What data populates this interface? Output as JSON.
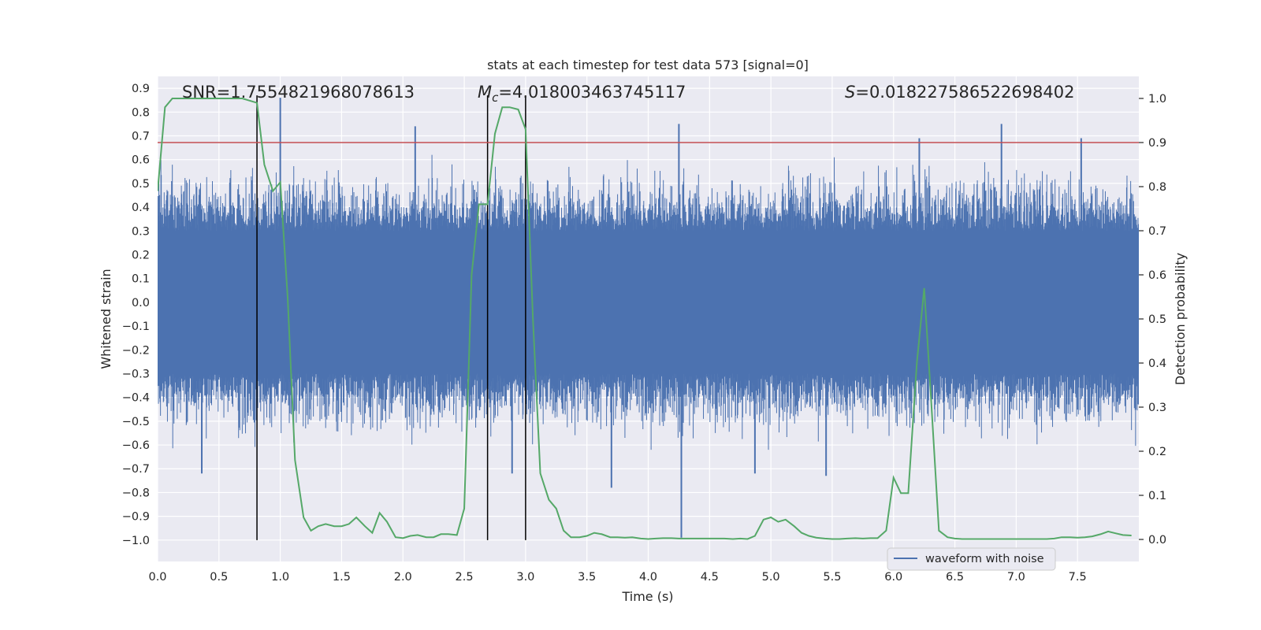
{
  "chart_data": {
    "type": "line",
    "title": "stats at each timestep for test data 573 [signal=0]",
    "xlabel": "Time (s)",
    "ylabel_left": "Whitened strain",
    "ylabel_right": "Detection probability",
    "xlim": [
      0,
      8
    ],
    "ylim_left": [
      -1.09,
      0.95
    ],
    "ylim_right": [
      -0.05,
      1.05
    ],
    "x_ticks": [
      0.0,
      0.5,
      1.0,
      1.5,
      2.0,
      2.5,
      3.0,
      3.5,
      4.0,
      4.5,
      5.0,
      5.5,
      6.0,
      6.5,
      7.0,
      7.5
    ],
    "x_tick_labels": [
      "0.0",
      "0.5",
      "1.0",
      "1.5",
      "2.0",
      "2.5",
      "3.0",
      "3.5",
      "4.0",
      "4.5",
      "5.0",
      "5.5",
      "6.0",
      "6.5",
      "7.0",
      "7.5"
    ],
    "y_left_ticks": [
      0.9,
      0.8,
      0.7,
      0.6,
      0.5,
      0.4,
      0.3,
      0.2,
      0.1,
      0.0,
      -0.1,
      -0.2,
      -0.3,
      -0.4,
      -0.5,
      -0.6,
      -0.7,
      -0.8,
      -0.9,
      -1.0
    ],
    "y_left_tick_labels": [
      "0.9",
      "0.8",
      "0.7",
      "0.6",
      "0.5",
      "0.4",
      "0.3",
      "0.2",
      "0.1",
      "0.0",
      "−0.1",
      "−0.2",
      "−0.3",
      "−0.4",
      "−0.5",
      "−0.6",
      "−0.7",
      "−0.8",
      "−0.9",
      "−1.0"
    ],
    "y_right_ticks": [
      1.0,
      0.9,
      0.8,
      0.7,
      0.6,
      0.5,
      0.4,
      0.3,
      0.2,
      0.1,
      0.0
    ],
    "y_right_tick_labels": [
      "1.0",
      "0.9",
      "0.8",
      "0.7",
      "0.6",
      "0.5",
      "0.4",
      "0.3",
      "0.2",
      "0.1",
      "0.0"
    ],
    "annotations": {
      "snr": "SNR=1.7554821968078613",
      "mc_symbol": "M",
      "mc_subscript": "c",
      "mc_value": "=4.018003463745117",
      "s_symbol": "S",
      "s_value": "=0.018227586522698402"
    },
    "legend": {
      "label": "waveform with noise",
      "location": "lower-right"
    },
    "threshold_probability": 0.9,
    "vertical_markers_time": [
      0.81,
      2.69,
      3.0
    ],
    "waveform": {
      "name": "waveform with noise",
      "core_amplitude": 0.3,
      "peaks": [
        {
          "t": 1.0,
          "v": 0.86
        },
        {
          "t": 2.1,
          "v": 0.74
        },
        {
          "t": 4.25,
          "v": 0.75
        },
        {
          "t": 4.27,
          "v": -0.99
        },
        {
          "t": 6.88,
          "v": 0.75
        },
        {
          "t": 0.36,
          "v": -0.72
        },
        {
          "t": 2.89,
          "v": -0.72
        },
        {
          "t": 3.7,
          "v": -0.78
        },
        {
          "t": 5.45,
          "v": -0.73
        },
        {
          "t": 6.21,
          "v": 0.69
        },
        {
          "t": 7.53,
          "v": 0.69
        },
        {
          "t": 4.87,
          "v": -0.72
        }
      ]
    },
    "series": [
      {
        "name": "detection probability",
        "axis": "right",
        "x": [
          0.0,
          0.06,
          0.12,
          0.19,
          0.25,
          0.31,
          0.37,
          0.44,
          0.5,
          0.56,
          0.62,
          0.69,
          0.75,
          0.81,
          0.87,
          0.94,
          1.0,
          1.06,
          1.12,
          1.19,
          1.25,
          1.31,
          1.37,
          1.44,
          1.5,
          1.56,
          1.62,
          1.69,
          1.75,
          1.81,
          1.87,
          1.94,
          2.0,
          2.06,
          2.12,
          2.19,
          2.25,
          2.31,
          2.37,
          2.44,
          2.5,
          2.56,
          2.62,
          2.69,
          2.75,
          2.81,
          2.87,
          2.94,
          3.0,
          3.06,
          3.12,
          3.19,
          3.25,
          3.31,
          3.37,
          3.44,
          3.5,
          3.56,
          3.62,
          3.69,
          3.75,
          3.81,
          3.87,
          3.94,
          4.0,
          4.06,
          4.12,
          4.19,
          4.25,
          4.31,
          4.37,
          4.44,
          4.5,
          4.56,
          4.62,
          4.69,
          4.75,
          4.81,
          4.87,
          4.94,
          5.0,
          5.06,
          5.12,
          5.19,
          5.25,
          5.31,
          5.37,
          5.44,
          5.5,
          5.56,
          5.62,
          5.69,
          5.75,
          5.81,
          5.87,
          5.94,
          6.0,
          6.06,
          6.12,
          6.19,
          6.25,
          6.31,
          6.37,
          6.44,
          6.5,
          6.56,
          6.62,
          6.69,
          6.75,
          6.81,
          6.87,
          6.94,
          7.0,
          7.06,
          7.12,
          7.19,
          7.25,
          7.31,
          7.37,
          7.44,
          7.5,
          7.56,
          7.62,
          7.69,
          7.75,
          7.81,
          7.87,
          7.94
        ],
        "values": [
          0.79,
          0.98,
          1.0,
          1.0,
          1.0,
          1.0,
          1.0,
          1.0,
          1.0,
          1.0,
          1.0,
          1.0,
          0.995,
          0.99,
          0.85,
          0.79,
          0.81,
          0.55,
          0.18,
          0.05,
          0.02,
          0.03,
          0.035,
          0.03,
          0.03,
          0.035,
          0.05,
          0.03,
          0.015,
          0.06,
          0.04,
          0.005,
          0.003,
          0.008,
          0.01,
          0.005,
          0.005,
          0.012,
          0.012,
          0.01,
          0.07,
          0.6,
          0.76,
          0.76,
          0.92,
          0.98,
          0.98,
          0.975,
          0.93,
          0.5,
          0.15,
          0.09,
          0.07,
          0.02,
          0.005,
          0.005,
          0.008,
          0.015,
          0.012,
          0.005,
          0.005,
          0.004,
          0.005,
          0.002,
          0.001,
          0.002,
          0.003,
          0.003,
          0.002,
          0.002,
          0.002,
          0.002,
          0.002,
          0.002,
          0.002,
          0.001,
          0.002,
          0.001,
          0.008,
          0.045,
          0.05,
          0.04,
          0.045,
          0.03,
          0.015,
          0.008,
          0.004,
          0.002,
          0.001,
          0.001,
          0.002,
          0.003,
          0.002,
          0.003,
          0.003,
          0.02,
          0.14,
          0.105,
          0.105,
          0.4,
          0.57,
          0.3,
          0.02,
          0.005,
          0.002,
          0.001,
          0.001,
          0.001,
          0.001,
          0.001,
          0.001,
          0.001,
          0.001,
          0.001,
          0.001,
          0.001,
          0.001,
          0.002,
          0.005,
          0.005,
          0.004,
          0.005,
          0.007,
          0.012,
          0.018,
          0.014,
          0.01,
          0.009
        ]
      }
    ]
  }
}
